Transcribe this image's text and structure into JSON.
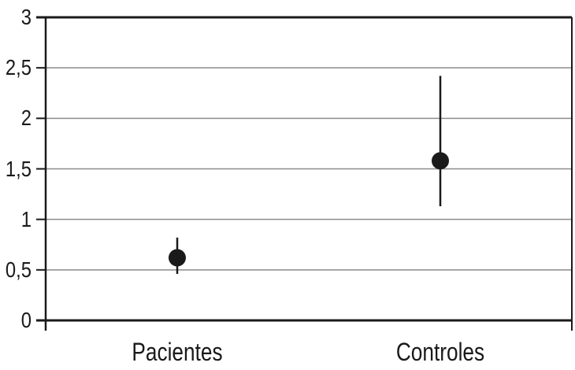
{
  "chart_data": {
    "type": "scatter",
    "subtype": "point-estimates-with-error-bars",
    "title": "",
    "xlabel": "",
    "ylabel": "",
    "categories": [
      "Pacientes",
      "Controles"
    ],
    "points": [
      {
        "category": "Pacientes",
        "value": 0.62,
        "ci_low": 0.46,
        "ci_high": 0.82
      },
      {
        "category": "Controles",
        "value": 1.58,
        "ci_low": 1.13,
        "ci_high": 2.42
      }
    ],
    "ylim": [
      0,
      3
    ],
    "yticks": [
      {
        "value": 0,
        "label": "0"
      },
      {
        "value": 0.5,
        "label": "0,5"
      },
      {
        "value": 1,
        "label": "1"
      },
      {
        "value": 1.5,
        "label": "1,5"
      },
      {
        "value": 2,
        "label": "2"
      },
      {
        "value": 2.5,
        "label": "2,5"
      },
      {
        "value": 3,
        "label": "3"
      }
    ],
    "decimal_separator": ",",
    "grid": "horizontal",
    "legend": "none",
    "marker": "filled-circle",
    "error_bars": true
  },
  "colors": {
    "background": "#ffffff",
    "axis": "#1a1a1a",
    "gridline": "#8c8c8c",
    "marker": "#1a1a1a",
    "text": "#1a1a1a"
  }
}
